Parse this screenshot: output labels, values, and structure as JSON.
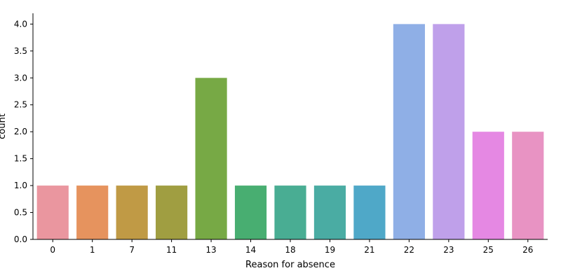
{
  "chart_data": {
    "type": "bar",
    "xlabel": "Reason for absence",
    "ylabel": "count",
    "categories": [
      "0",
      "1",
      "7",
      "11",
      "13",
      "14",
      "18",
      "19",
      "21",
      "22",
      "23",
      "25",
      "26"
    ],
    "values": [
      1,
      1,
      1,
      1,
      3,
      1,
      1,
      1,
      1,
      4,
      4,
      2,
      2
    ],
    "colors": [
      "#ea969f",
      "#e6935e",
      "#c09a45",
      "#a09e41",
      "#77a945",
      "#48ae71",
      "#49ad93",
      "#4aaca3",
      "#4fa8c8",
      "#8fafe6",
      "#bfa0ea",
      "#e588e3",
      "#e893c3"
    ],
    "ylim": [
      0,
      4.2
    ],
    "yticks": [
      "0.0",
      "0.5",
      "1.0",
      "1.5",
      "2.0",
      "2.5",
      "3.0",
      "3.5",
      "4.0"
    ],
    "grid": false,
    "legend": "none"
  }
}
